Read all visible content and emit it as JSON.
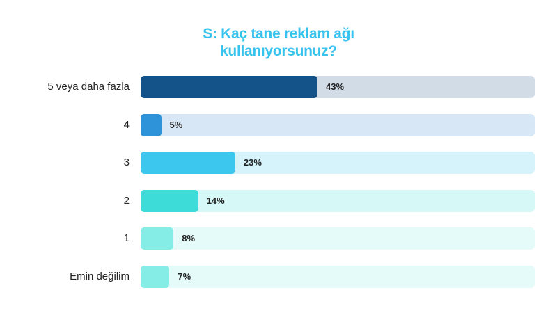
{
  "chart_data": {
    "type": "bar",
    "orientation": "horizontal",
    "title_lines": [
      "S: Kaç tane reklam ağı",
      "kullanıyorsunuz?"
    ],
    "categories": [
      "5 veya daha fazla",
      "4",
      "3",
      "2",
      "1",
      "Emin değilim"
    ],
    "values": [
      43,
      5,
      23,
      14,
      8,
      7
    ],
    "value_labels": [
      "43%",
      "5%",
      "23%",
      "14%",
      "8%",
      "7%"
    ],
    "xlim": [
      0,
      100
    ],
    "bar_colors": [
      "#13538a",
      "#2f93d9",
      "#3cc8ee",
      "#3ddcd8",
      "#86ece6",
      "#86ece6"
    ],
    "track_colors": [
      "#d2dce7",
      "#d7e7f5",
      "#d6f3fb",
      "#d6f8f6",
      "#e4fbf9",
      "#e4fbf9"
    ],
    "grid": false,
    "legend": "none"
  }
}
